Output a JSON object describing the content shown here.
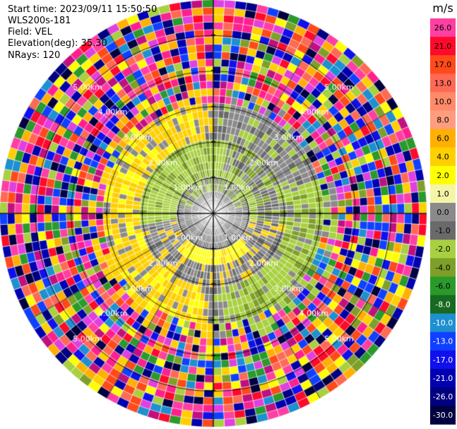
{
  "info": {
    "start_time": "Start time: 2023/09/11 15:50:50",
    "station": "WLS200s-181",
    "field": "Field: VEL",
    "elevation": "Elevation(deg): 35.30",
    "nrays": "NRays: 120"
  },
  "chart_data": {
    "type": "heatmap",
    "subtype": "radar-ppi",
    "title": "",
    "field": "VEL",
    "n_rays": 120,
    "n_rings": 29,
    "max_range_km": 6,
    "range_ring_labels": [
      "1.00km",
      "2.00km",
      "3.00km",
      "4.00km",
      "5.00km"
    ],
    "range_rings_km": [
      1,
      2,
      3,
      4,
      5
    ],
    "ring_label_azimuths_deg": [
      45,
      135,
      225,
      315
    ],
    "spoke_azimuths_deg": [
      0,
      30,
      60,
      90,
      120,
      150,
      180,
      210,
      240,
      270,
      300,
      330
    ],
    "pattern_regions": [
      {
        "from_km": 0.0,
        "to_km": 1.0,
        "velocity_band": [
          -1,
          1
        ],
        "color_name": "gray"
      },
      {
        "from_km": 1.0,
        "to_km": 2.0,
        "velocity_band": [
          -3,
          3
        ],
        "note": "north half negative (green), south half positive (yellow)"
      },
      {
        "from_km": 2.0,
        "to_km": 3.2,
        "velocity_band": [
          -5,
          5
        ],
        "note": "west positive (yellow), east negative (olive green)"
      },
      {
        "from_km": 3.2,
        "to_km": 6.0,
        "velocity_band": [
          -30,
          30
        ],
        "note": "noise, random velocities"
      }
    ],
    "colorbar": {
      "unit": "m/s",
      "ticks": [
        "26.0",
        "21.0",
        "17.0",
        "13.0",
        "10.0",
        "8.0",
        "6.0",
        "4.0",
        "2.0",
        "1.0",
        "0.0",
        "-1.0",
        "-2.0",
        "-4.0",
        "-6.0",
        "-8.0",
        "-10.0",
        "-13.0",
        "-17.0",
        "-21.0",
        "-26.0",
        "-30.0"
      ],
      "colors": [
        "#ff3fa2",
        "#ff0a2a",
        "#ff4a1a",
        "#ff6a55",
        "#ff8a6a",
        "#ff9d7e",
        "#ffb000",
        "#ffd000",
        "#ffff00",
        "#f5f5a8",
        "#8a8a8a",
        "#6a6a6a",
        "#a8d040",
        "#7fa028",
        "#2a9a2a",
        "#186a20",
        "#1e90d0",
        "#1040ff",
        "#1010ee",
        "#0000b0",
        "#000080",
        "#000040"
      ],
      "label_colors": [
        "#000000",
        "#000000",
        "#000000",
        "#000000",
        "#000000",
        "#000000",
        "#000000",
        "#000000",
        "#000000",
        "#000000",
        "#000000",
        "#000000",
        "#000000",
        "#000000",
        "#000000",
        "#ffffff",
        "#ffffff",
        "#ffffff",
        "#ffffff",
        "#ffffff",
        "#ffffff",
        "#ffffff"
      ]
    }
  }
}
